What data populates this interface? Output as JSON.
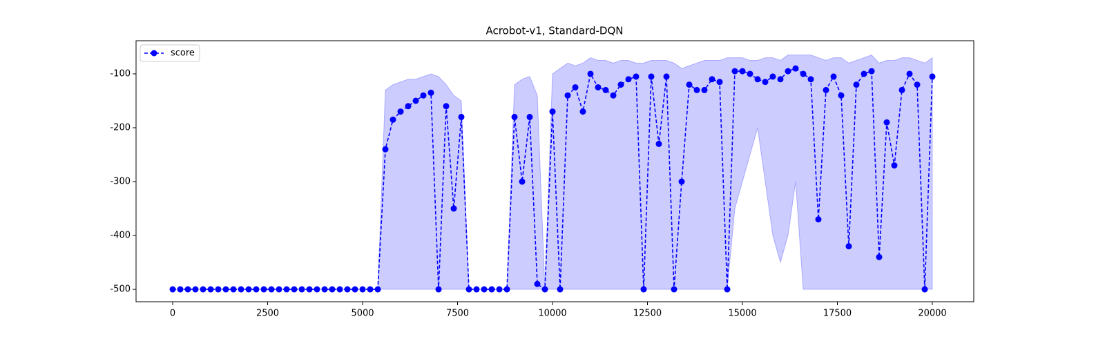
{
  "chart_data": {
    "type": "line",
    "title": "Acrobot-v1, Standard-DQN",
    "x": [
      0,
      200,
      400,
      600,
      800,
      1000,
      1200,
      1400,
      1600,
      1800,
      2000,
      2200,
      2400,
      2600,
      2800,
      3000,
      3200,
      3400,
      3600,
      3800,
      4000,
      4200,
      4400,
      4600,
      4800,
      5000,
      5200,
      5400,
      5600,
      5800,
      6000,
      6200,
      6400,
      6600,
      6800,
      7000,
      7200,
      7400,
      7600,
      7800,
      8000,
      8200,
      8400,
      8600,
      8800,
      9000,
      9200,
      9400,
      9600,
      9800,
      10000,
      10200,
      10400,
      10600,
      10800,
      11000,
      11200,
      11400,
      11600,
      11800,
      12000,
      12200,
      12400,
      12600,
      12800,
      13000,
      13200,
      13400,
      13600,
      13800,
      14000,
      14200,
      14400,
      14600,
      14800,
      15000,
      15200,
      15400,
      15600,
      15800,
      16000,
      16200,
      16400,
      16600,
      16800,
      17000,
      17200,
      17400,
      17600,
      17800,
      18000,
      18200,
      18400,
      18600,
      18800,
      19000,
      19200,
      19400,
      19600,
      19800,
      20000
    ],
    "series": [
      {
        "name": "score",
        "color": "#0000ff",
        "values": [
          -500,
          -500,
          -500,
          -500,
          -500,
          -500,
          -500,
          -500,
          -500,
          -500,
          -500,
          -500,
          -500,
          -500,
          -500,
          -500,
          -500,
          -500,
          -500,
          -500,
          -500,
          -500,
          -500,
          -500,
          -500,
          -500,
          -500,
          -500,
          -240,
          -185,
          -170,
          -160,
          -150,
          -140,
          -135,
          -500,
          -160,
          -350,
          -180,
          -500,
          -500,
          -500,
          -500,
          -500,
          -500,
          -180,
          -300,
          -180,
          -490,
          -500,
          -170,
          -500,
          -140,
          -125,
          -170,
          -100,
          -125,
          -130,
          -140,
          -120,
          -110,
          -105,
          -500,
          -105,
          -230,
          -105,
          -500,
          -300,
          -120,
          -130,
          -130,
          -110,
          -115,
          -500,
          -95,
          -95,
          -100,
          -110,
          -115,
          -105,
          -110,
          -95,
          -90,
          -100,
          -110,
          -370,
          -130,
          -105,
          -140,
          -420,
          -120,
          -100,
          -95,
          -440,
          -190,
          -270,
          -130,
          -100,
          -120,
          -500,
          -105
        ]
      }
    ],
    "band": {
      "color": "#0000ff",
      "upper": [
        -500,
        -500,
        -500,
        -500,
        -500,
        -500,
        -500,
        -500,
        -500,
        -500,
        -500,
        -500,
        -500,
        -500,
        -500,
        -500,
        -500,
        -500,
        -500,
        -500,
        -500,
        -500,
        -500,
        -500,
        -500,
        -500,
        -500,
        -500,
        -130,
        -120,
        -115,
        -110,
        -110,
        -105,
        -100,
        -105,
        -120,
        -140,
        -150,
        -500,
        -500,
        -500,
        -500,
        -500,
        -500,
        -120,
        -110,
        -105,
        -140,
        -500,
        -100,
        -90,
        -80,
        -85,
        -80,
        -70,
        -75,
        -75,
        -80,
        -75,
        -75,
        -80,
        -80,
        -75,
        -75,
        -75,
        -80,
        -90,
        -85,
        -80,
        -75,
        -75,
        -75,
        -70,
        -70,
        -70,
        -75,
        -75,
        -70,
        -70,
        -75,
        -65,
        -65,
        -65,
        -65,
        -70,
        -75,
        -70,
        -70,
        -80,
        -75,
        -70,
        -65,
        -80,
        -75,
        -75,
        -70,
        -70,
        -75,
        -80,
        -70
      ],
      "lower": [
        -500,
        -500,
        -500,
        -500,
        -500,
        -500,
        -500,
        -500,
        -500,
        -500,
        -500,
        -500,
        -500,
        -500,
        -500,
        -500,
        -500,
        -500,
        -500,
        -500,
        -500,
        -500,
        -500,
        -500,
        -500,
        -500,
        -500,
        -500,
        -500,
        -500,
        -500,
        -500,
        -500,
        -500,
        -500,
        -500,
        -500,
        -500,
        -500,
        -500,
        -500,
        -500,
        -500,
        -500,
        -500,
        -500,
        -500,
        -500,
        -500,
        -500,
        -500,
        -500,
        -500,
        -500,
        -500,
        -500,
        -500,
        -500,
        -500,
        -500,
        -500,
        -500,
        -500,
        -500,
        -500,
        -500,
        -500,
        -500,
        -500,
        -500,
        -500,
        -500,
        -500,
        -500,
        -350,
        -300,
        -250,
        -200,
        -300,
        -400,
        -450,
        -400,
        -300,
        -500,
        -500,
        -500,
        -500,
        -500,
        -500,
        -500,
        -500,
        -500,
        -500,
        -500,
        -500,
        -500,
        -500,
        -500,
        -500,
        -500,
        -500
      ]
    },
    "xlim": [
      -964,
      21091
    ],
    "ylim": [
      -523,
      -38.5
    ],
    "xticks": [
      0,
      2500,
      5000,
      7500,
      10000,
      12500,
      15000,
      17500,
      20000
    ],
    "yticks": [
      -500,
      -400,
      -300,
      -200,
      -100
    ],
    "legend": "upper left"
  }
}
